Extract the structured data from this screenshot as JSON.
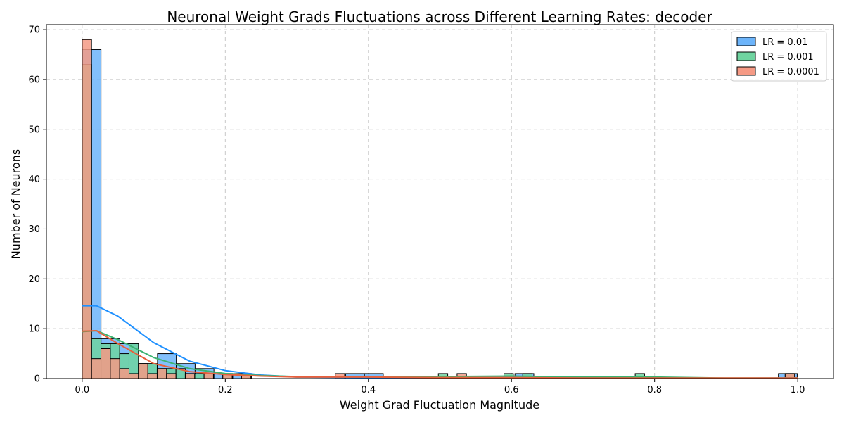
{
  "chart_data": {
    "type": "histogram",
    "title": "Neuronal Weight Grads Fluctuations across Different Learning Rates: decoder",
    "xlabel": "Weight Grad Fluctuation Magnitude",
    "ylabel": "Number of Neurons",
    "xlim": [
      -0.05,
      1.05
    ],
    "ylim": [
      0,
      71
    ],
    "xticks": [
      0.0,
      0.2,
      0.4,
      0.6,
      0.8,
      1.0
    ],
    "xtick_labels": [
      "0.0",
      "0.2",
      "0.4",
      "0.6",
      "0.8",
      "1.0"
    ],
    "yticks": [
      0,
      10,
      20,
      30,
      40,
      50,
      60,
      70
    ],
    "ytick_labels": [
      "0",
      "10",
      "20",
      "30",
      "40",
      "50",
      "60",
      "70"
    ],
    "grid": true,
    "legend_position": "top-right",
    "series": [
      {
        "name": "LR = 0.01",
        "color": "#1E90FF",
        "fill": "#6CB4FA",
        "bin_width": 0.0263,
        "bins": [
          {
            "x0": 0.0,
            "count": 66
          },
          {
            "x0": 0.0263,
            "count": 8
          },
          {
            "x0": 0.0526,
            "count": 7
          },
          {
            "x0": 0.0789,
            "count": 3
          },
          {
            "x0": 0.1052,
            "count": 5
          },
          {
            "x0": 0.1315,
            "count": 3
          },
          {
            "x0": 0.1578,
            "count": 2
          },
          {
            "x0": 0.1841,
            "count": 1
          },
          {
            "x0": 0.2104,
            "count": 1
          },
          {
            "x0": 0.3682,
            "count": 1
          },
          {
            "x0": 0.3945,
            "count": 1
          },
          {
            "x0": 0.6049,
            "count": 1
          },
          {
            "x0": 0.973,
            "count": 1
          }
        ],
        "kde": [
          [
            0,
            14.6
          ],
          [
            0.02,
            14.6
          ],
          [
            0.05,
            12.5
          ],
          [
            0.1,
            7.2
          ],
          [
            0.15,
            3.5
          ],
          [
            0.2,
            1.6
          ],
          [
            0.25,
            0.7
          ],
          [
            0.3,
            0.3
          ],
          [
            0.4,
            0.2
          ],
          [
            0.5,
            0.15
          ],
          [
            0.6,
            0.2
          ],
          [
            0.7,
            0.1
          ],
          [
            0.8,
            0.05
          ],
          [
            0.9,
            0.05
          ],
          [
            1.0,
            0.1
          ]
        ]
      },
      {
        "name": "LR = 0.001",
        "color": "#3CB371",
        "fill": "#6FD4A0",
        "bin_width": 0.0131,
        "bins": [
          {
            "x0": 0.0,
            "count": 63
          },
          {
            "x0": 0.0131,
            "count": 8
          },
          {
            "x0": 0.0262,
            "count": 7
          },
          {
            "x0": 0.0393,
            "count": 7
          },
          {
            "x0": 0.0524,
            "count": 5
          },
          {
            "x0": 0.0655,
            "count": 7
          },
          {
            "x0": 0.0786,
            "count": 3
          },
          {
            "x0": 0.0917,
            "count": 3
          },
          {
            "x0": 0.1048,
            "count": 2
          },
          {
            "x0": 0.1179,
            "count": 2
          },
          {
            "x0": 0.131,
            "count": 2
          },
          {
            "x0": 0.1441,
            "count": 1
          },
          {
            "x0": 0.1572,
            "count": 1
          },
          {
            "x0": 0.1703,
            "count": 1
          },
          {
            "x0": 0.1965,
            "count": 1
          },
          {
            "x0": 0.2227,
            "count": 1
          },
          {
            "x0": 0.4978,
            "count": 1
          },
          {
            "x0": 0.5895,
            "count": 1
          },
          {
            "x0": 0.6157,
            "count": 1
          },
          {
            "x0": 0.7729,
            "count": 1
          },
          {
            "x0": 0.9825,
            "count": 1
          }
        ],
        "kde": [
          [
            0,
            9.4
          ],
          [
            0.02,
            9.6
          ],
          [
            0.05,
            7.8
          ],
          [
            0.1,
            4.2
          ],
          [
            0.15,
            2.0
          ],
          [
            0.2,
            1.0
          ],
          [
            0.25,
            0.6
          ],
          [
            0.3,
            0.4
          ],
          [
            0.4,
            0.4
          ],
          [
            0.5,
            0.4
          ],
          [
            0.6,
            0.5
          ],
          [
            0.7,
            0.3
          ],
          [
            0.8,
            0.3
          ],
          [
            0.9,
            0.1
          ],
          [
            1.0,
            0.1
          ]
        ]
      },
      {
        "name": "LR = 0.0001",
        "color": "#E8603C",
        "fill": "#F59A85",
        "bin_width": 0.0131,
        "bins": [
          {
            "x0": 0.0,
            "count": 68
          },
          {
            "x0": 0.0131,
            "count": 4
          },
          {
            "x0": 0.0262,
            "count": 6
          },
          {
            "x0": 0.0393,
            "count": 4
          },
          {
            "x0": 0.0524,
            "count": 2
          },
          {
            "x0": 0.0655,
            "count": 1
          },
          {
            "x0": 0.0786,
            "count": 3
          },
          {
            "x0": 0.0917,
            "count": 1
          },
          {
            "x0": 0.1048,
            "count": 2
          },
          {
            "x0": 0.1179,
            "count": 1
          },
          {
            "x0": 0.1441,
            "count": 1
          },
          {
            "x0": 0.1703,
            "count": 1
          },
          {
            "x0": 0.1965,
            "count": 1
          },
          {
            "x0": 0.2227,
            "count": 1
          },
          {
            "x0": 0.3537,
            "count": 1
          },
          {
            "x0": 0.524,
            "count": 1
          },
          {
            "x0": 0.9825,
            "count": 1
          }
        ],
        "kde": [
          [
            0,
            9.5
          ],
          [
            0.02,
            9.6
          ],
          [
            0.05,
            7.0
          ],
          [
            0.1,
            3.0
          ],
          [
            0.15,
            1.4
          ],
          [
            0.2,
            0.8
          ],
          [
            0.25,
            0.5
          ],
          [
            0.3,
            0.3
          ],
          [
            0.4,
            0.3
          ],
          [
            0.5,
            0.2
          ],
          [
            0.6,
            0.2
          ],
          [
            0.7,
            0.1
          ],
          [
            0.8,
            0.1
          ],
          [
            0.9,
            0.1
          ],
          [
            1.0,
            0.1
          ]
        ]
      }
    ]
  }
}
